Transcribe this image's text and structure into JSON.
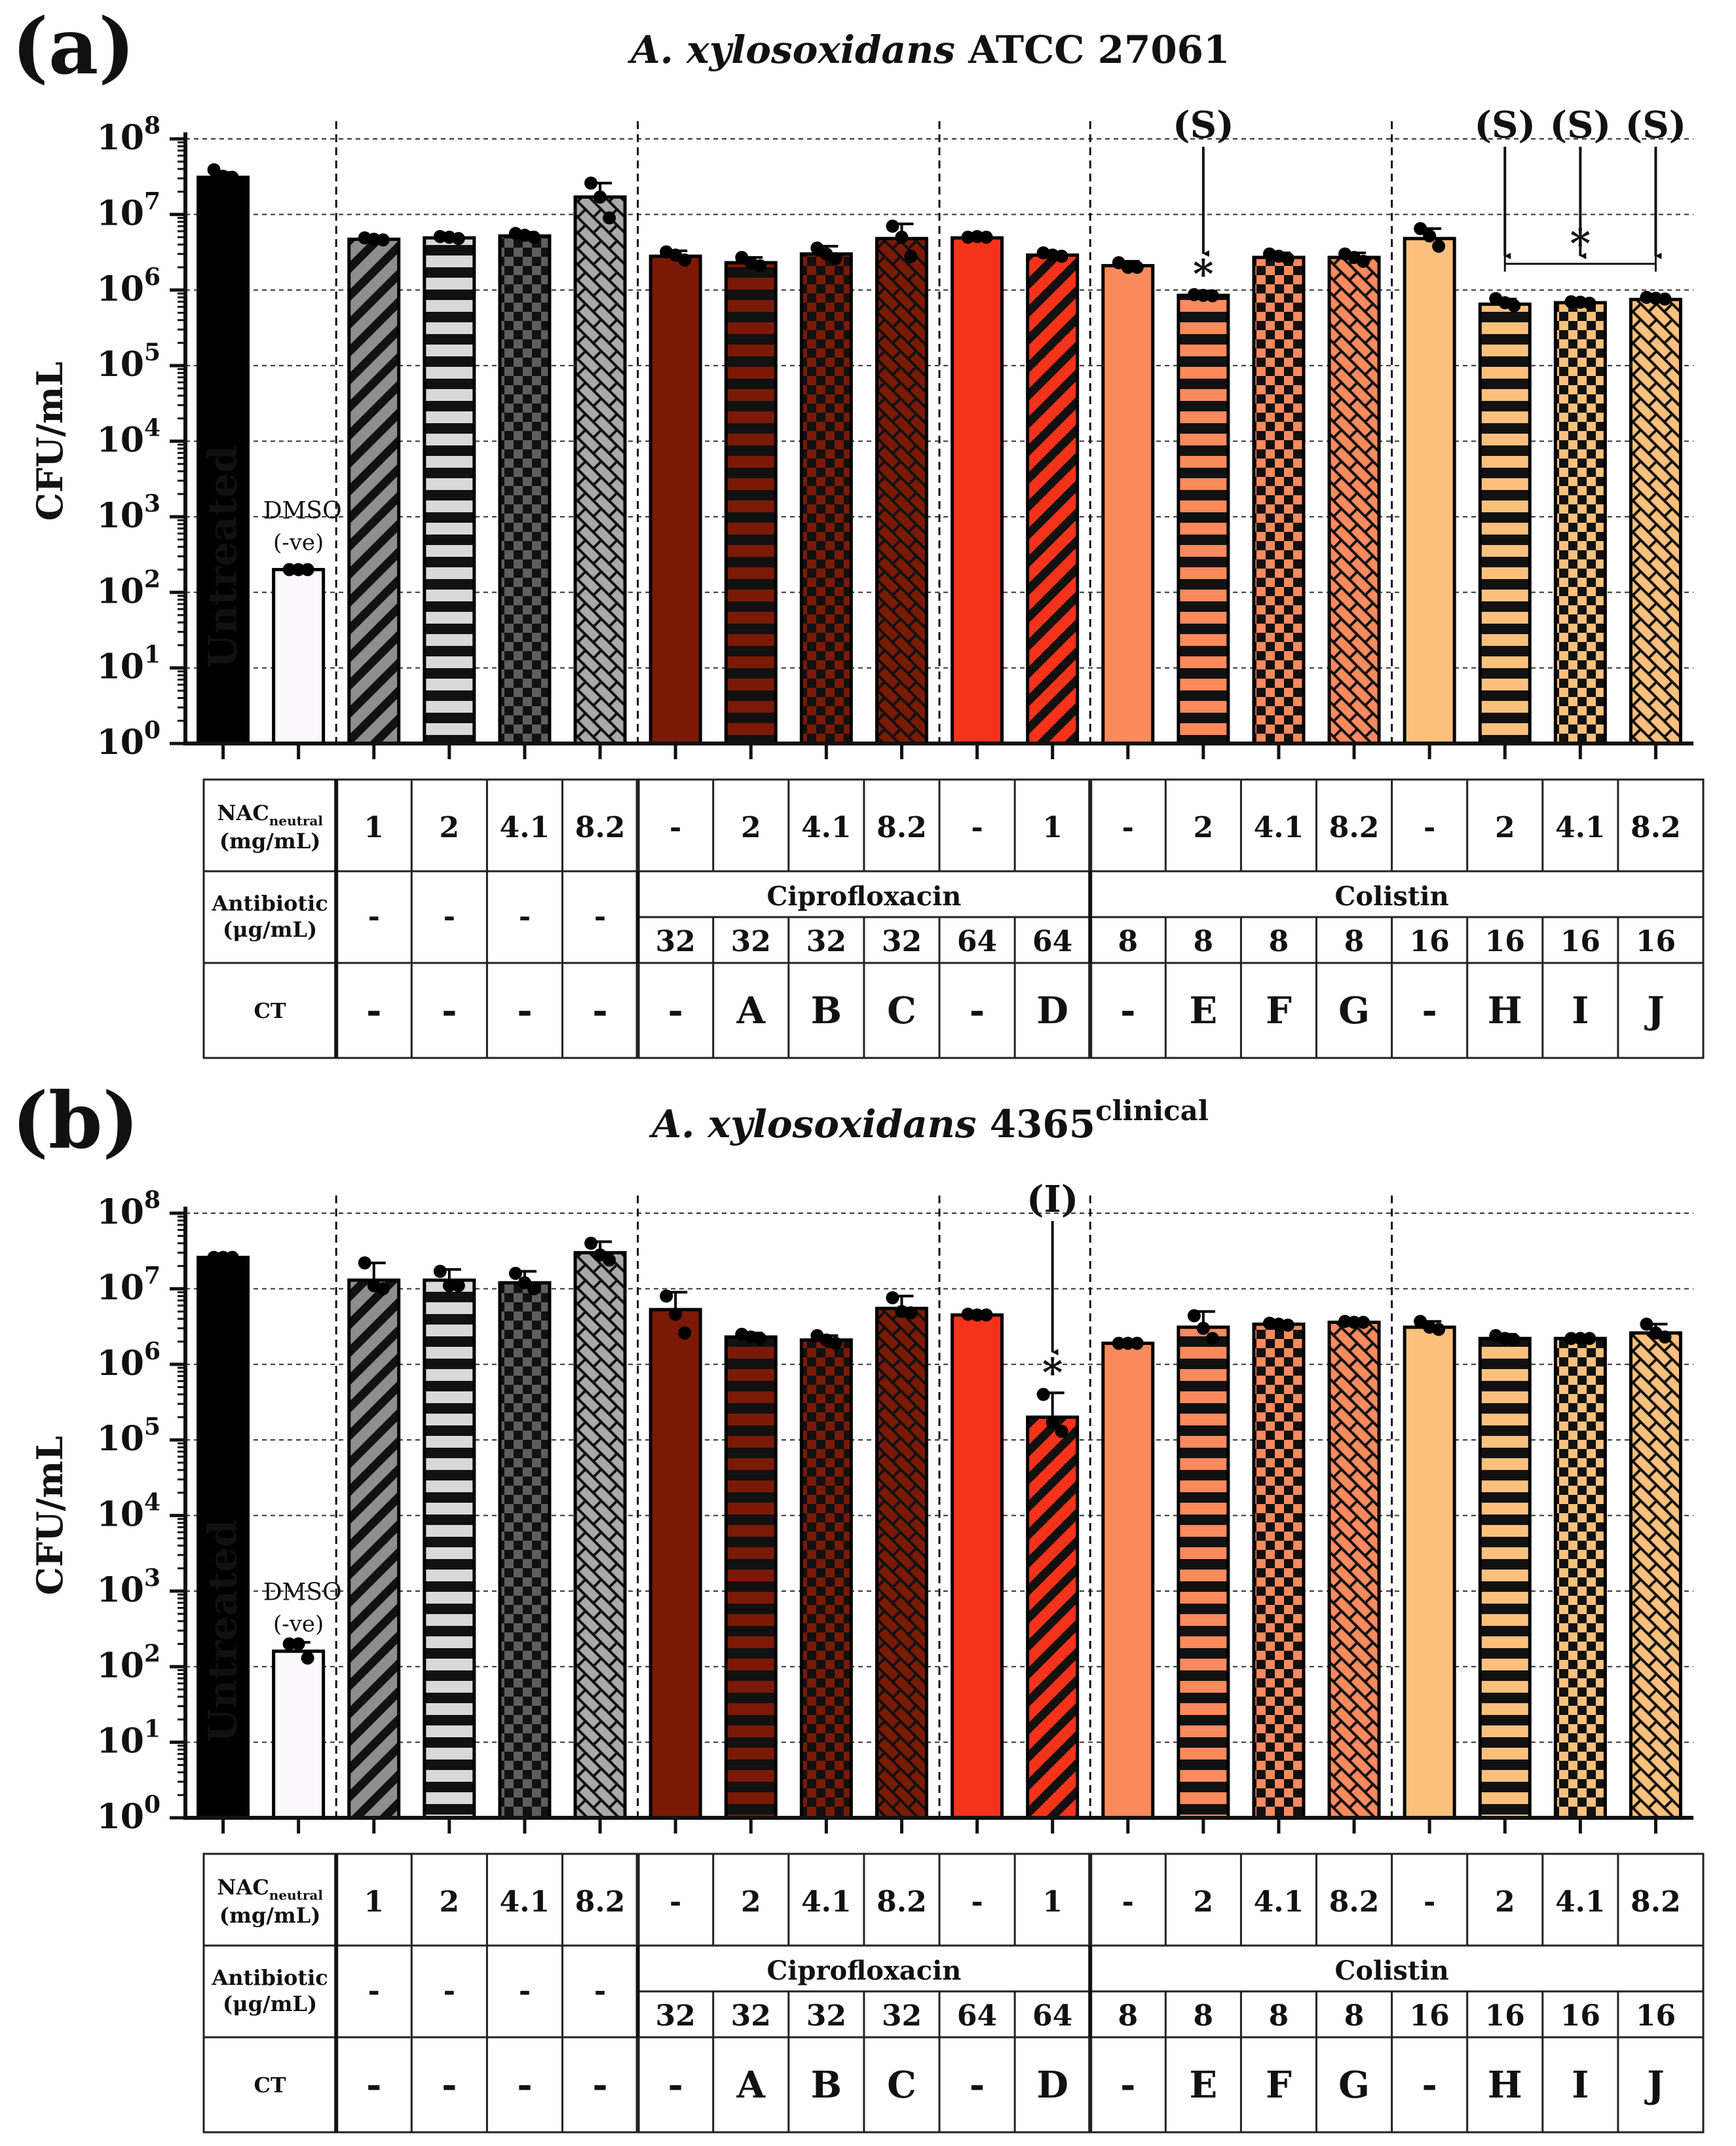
{
  "chart_data": [
    {
      "type": "bar",
      "panel_label": "(a)",
      "title_italic": "A. xylosoxidans",
      "title_rest": " ATCC 27061",
      "title_sup": "",
      "ylabel": "CFU/mL",
      "yscale": "log10",
      "ylim": [
        1,
        100000000
      ],
      "ytick_base": "10",
      "ytick_exponents": [
        "0",
        "1",
        "2",
        "3",
        "4",
        "5",
        "6",
        "7",
        "8"
      ],
      "bar_labels": {
        "untreated": "Untreated",
        "dmso_line1": "DMSO",
        "dmso_line2": "(-ve)"
      },
      "categories": [
        "Untreated",
        "DMSO (-ve)",
        "NAC 1",
        "NAC 2",
        "NAC 4.1",
        "NAC 8.2",
        "Cip 32",
        "Cip 32 + NAC 2 (A)",
        "Cip 32 + NAC 4.1 (B)",
        "Cip 32 + NAC 8.2 (C)",
        "Cip 64",
        "Cip 64 + NAC 1 (D)",
        "Col 8",
        "Col 8 + NAC 2 (E)",
        "Col 8 + NAC 4.1 (F)",
        "Col 8 + NAC 8.2 (G)",
        "Col 16",
        "Col 16 + NAC 2 (H)",
        "Col 16 + NAC 4.1 (I)",
        "Col 16 + NAC 8.2 (J)"
      ],
      "values": [
        31000000,
        200,
        4700000,
        4900000,
        5200000,
        17000000,
        2800000,
        2300000,
        3000000,
        4800000,
        4900000,
        2900000,
        2100000,
        850000,
        2700000,
        2700000,
        4800000,
        650000,
        680000,
        750000
      ],
      "error_up": [
        36000000,
        210,
        4900000,
        5200000,
        5800000,
        26000000,
        3300000,
        2700000,
        3800000,
        7500000,
        5300000,
        3200000,
        2400000,
        880000,
        3100000,
        3100000,
        6500000,
        760000,
        720000,
        820000
      ],
      "points": [
        [
          39000000,
          32000000,
          31000000
        ],
        [
          200,
          200,
          200
        ],
        [
          4900000,
          4700000,
          4600000
        ],
        [
          5100000,
          5000000,
          4800000
        ],
        [
          5600000,
          5300000,
          5000000
        ],
        [
          26000000,
          17000000,
          9000000
        ],
        [
          3200000,
          2900000,
          2500000
        ],
        [
          2700000,
          2300000,
          2100000
        ],
        [
          3600000,
          3000000,
          2600000
        ],
        [
          7000000,
          5000000,
          2800000
        ],
        [
          5000000,
          5100000,
          5000000
        ],
        [
          3100000,
          2900000,
          2800000
        ],
        [
          2300000,
          2000000,
          2000000
        ],
        [
          870000,
          850000,
          840000
        ],
        [
          3000000,
          2800000,
          2600000
        ],
        [
          3000000,
          2700000,
          2400000
        ],
        [
          6500000,
          5200000,
          3800000
        ],
        [
          770000,
          680000,
          620000
        ],
        [
          700000,
          690000,
          670000
        ],
        [
          800000,
          780000,
          760000
        ]
      ],
      "colors": [
        "#000000",
        "#fdf8fd",
        "#8e8e8e",
        "#d9d9d9",
        "#5e5e5e",
        "#a9a9a9",
        "#7a1a06",
        "#7a1a06",
        "#7a1a06",
        "#7a1a06",
        "#f5331a",
        "#f5331a",
        "#fb8a5d",
        "#fb8a5d",
        "#fb8a5d",
        "#fb8a5d",
        "#fbc07c",
        "#fbc07c",
        "#fbc07c",
        "#fbc07c"
      ],
      "patterns": [
        "none",
        "none",
        "diag",
        "hlines",
        "checker",
        "brick",
        "none",
        "hlines",
        "checker",
        "brick",
        "none",
        "diag",
        "none",
        "hlines",
        "checker",
        "brick",
        "none",
        "hlines",
        "checker",
        "brick"
      ],
      "annotations": [
        {
          "label": "(S)",
          "bar_index": 13
        },
        {
          "label": "(S)",
          "bar_index": 17
        },
        {
          "label": "(S)",
          "bar_index": 18
        },
        {
          "label": "(S)",
          "bar_index": 19
        },
        {
          "label": "*",
          "bar_index": 13
        },
        {
          "label": "*",
          "bar_index": 18,
          "bracket": [
            17,
            19
          ]
        }
      ],
      "group_separators_after": [
        1,
        5,
        9,
        11,
        15
      ],
      "table": {
        "nac_label": "NAC",
        "nac_sub": "neutral",
        "nac_unit": "(mg/mL)",
        "nac_values": [
          "1",
          "2",
          "4.1",
          "8.2",
          "-",
          "2",
          "4.1",
          "8.2",
          "-",
          "1",
          "-",
          "2",
          "4.1",
          "8.2",
          "-",
          "2",
          "4.1",
          "8.2"
        ],
        "antibiotic_label": "Antibiotic",
        "antibiotic_unit": "(μg/mL)",
        "antibiotic_none": [
          "-",
          "-",
          "-",
          "-"
        ],
        "antibiotic_names": [
          "Ciprofloxacin",
          "Colistin"
        ],
        "antibiotic_values": [
          "32",
          "32",
          "32",
          "32",
          "64",
          "64",
          "8",
          "8",
          "8",
          "8",
          "16",
          "16",
          "16",
          "16"
        ],
        "ct_label": "CT",
        "ct_values": [
          "-",
          "-",
          "-",
          "-",
          "-",
          "A",
          "B",
          "C",
          "-",
          "D",
          "-",
          "E",
          "F",
          "G",
          "-",
          "H",
          "I",
          "J"
        ]
      }
    },
    {
      "type": "bar",
      "panel_label": "(b)",
      "title_italic": "A. xylosoxidans",
      "title_rest": " 4365",
      "title_sup": "clinical",
      "ylabel": "CFU/mL",
      "yscale": "log10",
      "ylim": [
        1,
        100000000
      ],
      "ytick_base": "10",
      "ytick_exponents": [
        "0",
        "1",
        "2",
        "3",
        "4",
        "5",
        "6",
        "7",
        "8"
      ],
      "bar_labels": {
        "untreated": "Untreated",
        "dmso_line1": "DMSO",
        "dmso_line2": "(-ve)"
      },
      "categories": [
        "Untreated",
        "DMSO (-ve)",
        "NAC 1",
        "NAC 2",
        "NAC 4.1",
        "NAC 8.2",
        "Cip 32",
        "Cip 32 + NAC 2 (A)",
        "Cip 32 + NAC 4.1 (B)",
        "Cip 32 + NAC 8.2 (C)",
        "Cip 64",
        "Cip 64 + NAC 1 (D)",
        "Col 8",
        "Col 8 + NAC 2 (E)",
        "Col 8 + NAC 4.1 (F)",
        "Col 8 + NAC 8.2 (G)",
        "Col 16",
        "Col 16 + NAC 2 (H)",
        "Col 16 + NAC 4.1 (I)",
        "Col 16 + NAC 8.2 (J)"
      ],
      "values": [
        26000000,
        160,
        13000000,
        13000000,
        12000000,
        30000000,
        5300000,
        2300000,
        2100000,
        5500000,
        4500000,
        200000,
        1900000,
        3100000,
        3400000,
        3600000,
        3100000,
        2200000,
        2200000,
        2600000
      ],
      "error_up": [
        27000000,
        210,
        22000000,
        18000000,
        17000000,
        42000000,
        9000000,
        2600000,
        2400000,
        8000000,
        4700000,
        420000,
        2000000,
        5000000,
        3600000,
        3800000,
        3700000,
        2500000,
        2300000,
        3400000
      ],
      "points": [
        [
          26000000,
          26000000,
          26000000
        ],
        [
          200,
          200,
          130
        ],
        [
          22000000,
          11000000,
          10000000
        ],
        [
          17000000,
          11000000,
          11000000
        ],
        [
          16000000,
          12000000,
          10000000
        ],
        [
          40000000,
          28000000,
          24000000
        ],
        [
          8000000,
          4600000,
          2600000
        ],
        [
          2500000,
          2300000,
          2200000
        ],
        [
          2400000,
          2100000,
          1900000
        ],
        [
          7600000,
          5000000,
          4800000
        ],
        [
          4600000,
          4500000,
          4500000
        ],
        [
          400000,
          170000,
          130000
        ],
        [
          1900000,
          1900000,
          1900000
        ],
        [
          4400000,
          3000000,
          2200000
        ],
        [
          3500000,
          3400000,
          3300000
        ],
        [
          3700000,
          3600000,
          3600000
        ],
        [
          3700000,
          3100000,
          2900000
        ],
        [
          2400000,
          2200000,
          2100000
        ],
        [
          2200000,
          2200000,
          2200000
        ],
        [
          3400000,
          2600000,
          2300000
        ]
      ],
      "colors": [
        "#000000",
        "#fdf8fd",
        "#8e8e8e",
        "#d9d9d9",
        "#5e5e5e",
        "#a9a9a9",
        "#7a1a06",
        "#7a1a06",
        "#7a1a06",
        "#7a1a06",
        "#f5331a",
        "#f5331a",
        "#fb8a5d",
        "#fb8a5d",
        "#fb8a5d",
        "#fb8a5d",
        "#fbc07c",
        "#fbc07c",
        "#fbc07c",
        "#fbc07c"
      ],
      "patterns": [
        "none",
        "none",
        "diag",
        "hlines",
        "checker",
        "brick",
        "none",
        "hlines",
        "checker",
        "brick",
        "none",
        "diag",
        "none",
        "hlines",
        "checker",
        "brick",
        "none",
        "hlines",
        "checker",
        "brick"
      ],
      "annotations": [
        {
          "label": "(I)",
          "bar_index": 11
        },
        {
          "label": "*",
          "bar_index": 11
        }
      ],
      "group_separators_after": [
        1,
        5,
        9,
        11,
        15
      ],
      "table": {
        "nac_label": "NAC",
        "nac_sub": "neutral",
        "nac_unit": "(mg/mL)",
        "nac_values": [
          "1",
          "2",
          "4.1",
          "8.2",
          "-",
          "2",
          "4.1",
          "8.2",
          "-",
          "1",
          "-",
          "2",
          "4.1",
          "8.2",
          "-",
          "2",
          "4.1",
          "8.2"
        ],
        "antibiotic_label": "Antibiotic",
        "antibiotic_unit": "(μg/mL)",
        "antibiotic_none": [
          "-",
          "-",
          "-",
          "-"
        ],
        "antibiotic_names": [
          "Ciprofloxacin",
          "Colistin"
        ],
        "antibiotic_values": [
          "32",
          "32",
          "32",
          "32",
          "64",
          "64",
          "8",
          "8",
          "8",
          "8",
          "16",
          "16",
          "16",
          "16"
        ],
        "ct_label": "CT",
        "ct_values": [
          "-",
          "-",
          "-",
          "-",
          "-",
          "A",
          "B",
          "C",
          "-",
          "D",
          "-",
          "E",
          "F",
          "G",
          "-",
          "H",
          "I",
          "J"
        ]
      }
    }
  ]
}
